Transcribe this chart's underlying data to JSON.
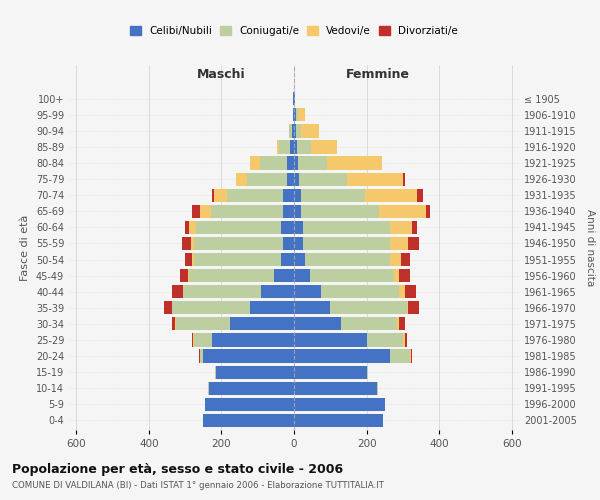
{
  "age_groups": [
    "0-4",
    "5-9",
    "10-14",
    "15-19",
    "20-24",
    "25-29",
    "30-34",
    "35-39",
    "40-44",
    "45-49",
    "50-54",
    "55-59",
    "60-64",
    "65-69",
    "70-74",
    "75-79",
    "80-84",
    "85-89",
    "90-94",
    "95-99",
    "100+"
  ],
  "birth_years": [
    "2001-2005",
    "1996-2000",
    "1991-1995",
    "1986-1990",
    "1981-1985",
    "1976-1980",
    "1971-1975",
    "1966-1970",
    "1961-1965",
    "1956-1960",
    "1951-1955",
    "1946-1950",
    "1941-1945",
    "1936-1940",
    "1931-1935",
    "1926-1930",
    "1921-1925",
    "1916-1920",
    "1911-1915",
    "1906-1910",
    "≤ 1905"
  ],
  "male": {
    "celibi": [
      250,
      245,
      235,
      215,
      250,
      225,
      175,
      120,
      90,
      55,
      35,
      30,
      35,
      30,
      30,
      20,
      20,
      10,
      5,
      2,
      2
    ],
    "coniugati": [
      0,
      0,
      2,
      2,
      10,
      50,
      150,
      215,
      215,
      235,
      240,
      245,
      235,
      200,
      155,
      110,
      75,
      30,
      8,
      2,
      0
    ],
    "vedovi": [
      0,
      0,
      0,
      0,
      0,
      2,
      2,
      2,
      2,
      3,
      5,
      10,
      20,
      30,
      35,
      30,
      25,
      8,
      2,
      0,
      0
    ],
    "divorziati": [
      0,
      0,
      0,
      0,
      2,
      5,
      10,
      20,
      30,
      20,
      20,
      25,
      10,
      20,
      5,
      0,
      0,
      0,
      0,
      0,
      0
    ]
  },
  "female": {
    "nubili": [
      245,
      250,
      230,
      200,
      265,
      200,
      130,
      100,
      75,
      45,
      30,
      25,
      25,
      20,
      20,
      15,
      12,
      8,
      5,
      5,
      2
    ],
    "coniugate": [
      0,
      2,
      2,
      5,
      55,
      100,
      155,
      210,
      215,
      230,
      235,
      240,
      240,
      215,
      175,
      130,
      80,
      40,
      15,
      5,
      0
    ],
    "vedove": [
      0,
      0,
      0,
      0,
      2,
      5,
      5,
      5,
      15,
      15,
      30,
      50,
      60,
      130,
      145,
      155,
      150,
      70,
      50,
      20,
      2
    ],
    "divorziate": [
      0,
      0,
      0,
      0,
      2,
      5,
      15,
      30,
      30,
      30,
      25,
      30,
      15,
      10,
      15,
      5,
      0,
      0,
      0,
      0,
      0
    ]
  },
  "colors": {
    "celibi": "#4472C4",
    "coniugati": "#BDCFA1",
    "vedovi": "#F5C96B",
    "divorziati": "#C0302A"
  },
  "title": "Popolazione per età, sesso e stato civile - 2006",
  "subtitle": "COMUNE DI VALDILANA (BI) - Dati ISTAT 1° gennaio 2006 - Elaborazione TUTTITALIA.IT",
  "xlabel_left": "Maschi",
  "xlabel_right": "Femmine",
  "ylabel_left": "Fasce di età",
  "ylabel_right": "Anni di nascita",
  "xlim": 620,
  "background_color": "#f5f5f5",
  "grid_color": "#cccccc"
}
